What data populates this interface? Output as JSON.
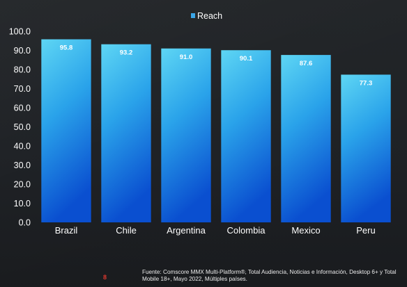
{
  "chart_data": {
    "type": "bar",
    "title": "",
    "xlabel": "",
    "ylabel": "",
    "categories": [
      "Brazil",
      "Chile",
      "Argentina",
      "Colombia",
      "Mexico",
      "Peru"
    ],
    "series": [
      {
        "name": "Reach",
        "values": [
          95.8,
          93.2,
          91.0,
          90.1,
          87.6,
          77.3
        ]
      }
    ],
    "data_labels": [
      "95.8",
      "93.2",
      "91.0",
      "90.1",
      "87.6",
      "77.3"
    ],
    "ylim": [
      0,
      100
    ],
    "yticks": [
      0,
      10,
      20,
      30,
      40,
      50,
      60,
      70,
      80,
      90,
      100
    ],
    "ytick_labels": [
      "0.0",
      "10.0",
      "20.0",
      "30.0",
      "40.0",
      "50.0",
      "60.0",
      "70.0",
      "80.0",
      "90.0",
      "100.0"
    ],
    "grid": false,
    "legend": "top-center",
    "colors": {
      "bar_top": "#5ed6f4",
      "bar_bottom": "#0a4fd0",
      "legend_swatch": "#3aa6e8",
      "axis_text": "#ffffff"
    }
  },
  "footer": {
    "page_number": "8",
    "source_note": "Fuente: Comscore MMX Multi-Platform®, Total Audiencia, Noticias e Información, Desktop 6+ y Total Mobile 18+, Mayo 2022, Múltiples países."
  }
}
